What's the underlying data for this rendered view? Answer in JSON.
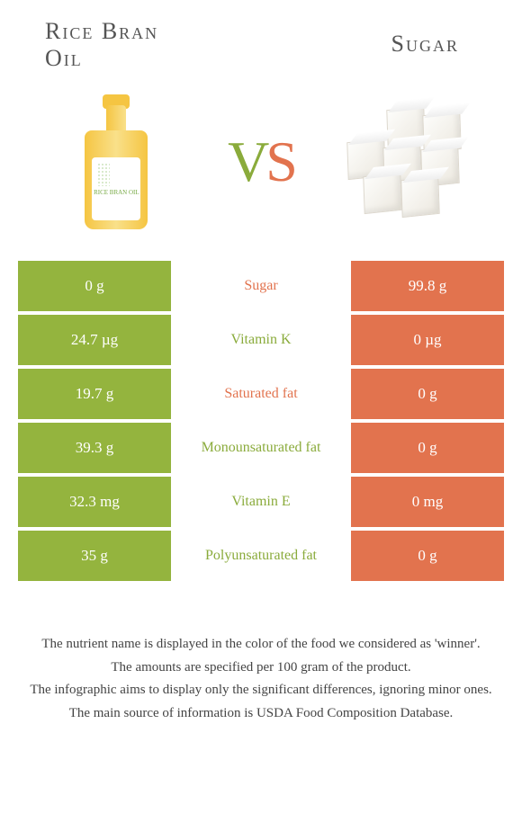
{
  "header": {
    "left_title_line1": "Rice Bran",
    "left_title_line2": "Oil",
    "right_title": "Sugar"
  },
  "vs": {
    "v": "V",
    "s": "S"
  },
  "colors": {
    "left_bg": "#94b43e",
    "right_bg": "#e2734e",
    "left_text": "#8aab3b",
    "right_text": "#e2734e",
    "background": "#ffffff"
  },
  "rows": [
    {
      "left": "0 g",
      "label": "Sugar",
      "right": "99.8 g",
      "winner": "right"
    },
    {
      "left": "24.7 µg",
      "label": "Vitamin K",
      "right": "0 µg",
      "winner": "left"
    },
    {
      "left": "19.7 g",
      "label": "Saturated fat",
      "right": "0 g",
      "winner": "right"
    },
    {
      "left": "39.3 g",
      "label": "Monounsaturated fat",
      "right": "0 g",
      "winner": "left"
    },
    {
      "left": "32.3 mg",
      "label": "Vitamin E",
      "right": "0 mg",
      "winner": "left"
    },
    {
      "left": "35 g",
      "label": "Polyunsaturated fat",
      "right": "0 g",
      "winner": "left"
    }
  ],
  "oil_label": "RICE BRAN OIL",
  "footnotes": [
    "The nutrient name is displayed in the color of the food we considered as 'winner'.",
    "The amounts are specified per 100 gram of the product.",
    "The infographic aims to display only the significant differences, ignoring minor ones.",
    "The main source of information is USDA Food Composition Database."
  ]
}
